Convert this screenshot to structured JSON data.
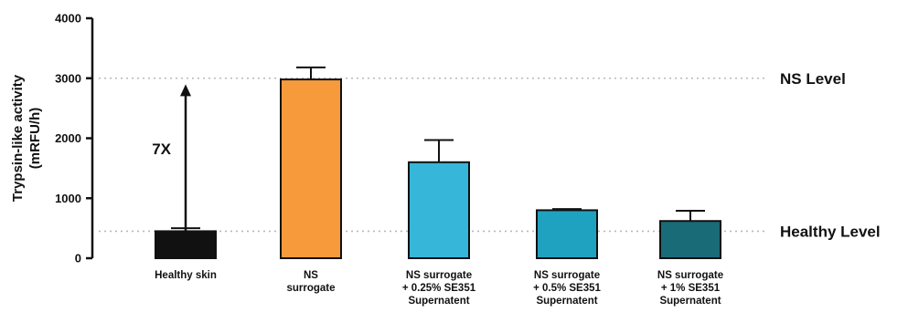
{
  "chart_data": {
    "type": "bar",
    "title": "",
    "xlabel": "",
    "ylabel_lines": [
      "Trypsin-like activity",
      "(mRFU/h)"
    ],
    "ylim": [
      0,
      4000
    ],
    "yticks": [
      0,
      1000,
      2000,
      3000,
      4000
    ],
    "grid": false,
    "categories": [
      [
        "Healthy skin"
      ],
      [
        "NS",
        "surrogate"
      ],
      [
        "NS surrogate",
        "+ 0.25% SE351",
        "Supernatent"
      ],
      [
        "NS surrogate",
        "+ 0.5% SE351",
        "Supernatent"
      ],
      [
        "NS surrogate",
        "+ 1% SE351",
        "Supernatent"
      ]
    ],
    "values": [
      450,
      2980,
      1600,
      800,
      620
    ],
    "errors": [
      50,
      200,
      370,
      20,
      170
    ],
    "colors": [
      "#111111",
      "#f79a3c",
      "#36b6d9",
      "#1ea2bf",
      "#1a6b78"
    ],
    "reference_lines": [
      {
        "label": "NS Level",
        "value": 3000
      },
      {
        "label": "Healthy Level",
        "value": 450
      }
    ],
    "annotation": {
      "label": "7X",
      "from_value": 450,
      "to_value": 2900,
      "category_index": 0
    }
  }
}
